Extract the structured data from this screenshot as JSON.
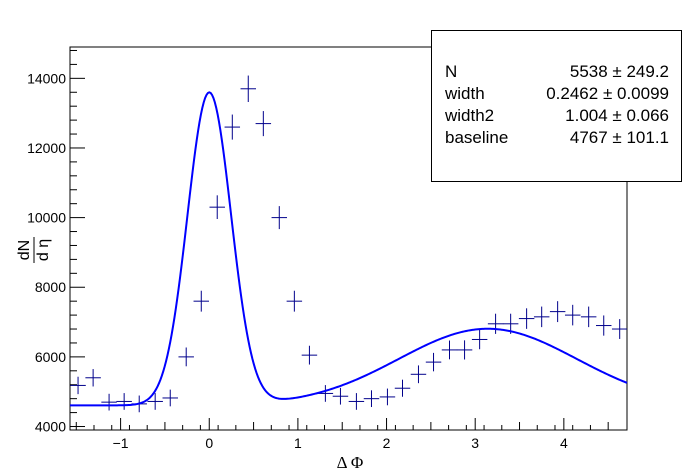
{
  "chart_data": {
    "type": "scatter",
    "xlabel": "Δ Φ",
    "ylabel_num": "dN",
    "ylabel_den": "d η",
    "xlim": [
      -1.5708,
      4.7124
    ],
    "ylim": [
      3900,
      14900
    ],
    "xticks": [
      -1,
      0,
      1,
      2,
      3,
      4
    ],
    "yticks": [
      4000,
      6000,
      8000,
      10000,
      12000,
      14000
    ],
    "grid": false,
    "series": [
      {
        "kind": "data-points-with-errors",
        "color": "#00008b",
        "x": [
          -1.48,
          -1.31,
          -1.13,
          -0.96,
          -0.79,
          -0.61,
          -0.44,
          -0.26,
          -0.09,
          0.09,
          0.26,
          0.44,
          0.61,
          0.79,
          0.96,
          1.13,
          1.31,
          1.48,
          1.66,
          1.83,
          2.01,
          2.18,
          2.36,
          2.53,
          2.71,
          2.88,
          3.05,
          3.23,
          3.4,
          3.58,
          3.75,
          3.93,
          4.1,
          4.28,
          4.45,
          4.63
        ],
        "y": [
          5180,
          5400,
          4700,
          4720,
          4650,
          4720,
          4820,
          6000,
          7600,
          10300,
          12600,
          13700,
          12700,
          10000,
          7600,
          6050,
          4950,
          4870,
          4720,
          4800,
          4850,
          5100,
          5500,
          5850,
          6200,
          6200,
          6500,
          6950,
          6950,
          7100,
          7150,
          7300,
          7200,
          7150,
          6900,
          6800
        ],
        "yerr": [
          250,
          250,
          240,
          240,
          240,
          240,
          240,
          270,
          300,
          340,
          360,
          380,
          360,
          330,
          300,
          270,
          240,
          240,
          240,
          240,
          240,
          245,
          255,
          265,
          270,
          275,
          280,
          290,
          290,
          295,
          295,
          300,
          295,
          295,
          290,
          285
        ]
      },
      {
        "kind": "fit-curve",
        "color": "#0000ff",
        "function": "N*(1/(sqrt(2*pi)*width))*exp(-dphi^2/(2*width^2)) + N*(1/(sqrt(2*pi)*width2))*exp(-(dphi-pi)^2/(2*width2^2)) + baseline"
      }
    ],
    "stats_box": {
      "rows": [
        {
          "name": "N",
          "value": "5538 ± 249.2"
        },
        {
          "name": "width",
          "value": "0.2462 ± 0.0099"
        },
        {
          "name": "width2",
          "value": "1.004 ± 0.066"
        },
        {
          "name": "baseline",
          "value": "4767 ± 101.1"
        }
      ]
    },
    "fit_params": {
      "N": 5538,
      "width": 0.2462,
      "width2": 1.004,
      "baseline": 4767
    }
  }
}
